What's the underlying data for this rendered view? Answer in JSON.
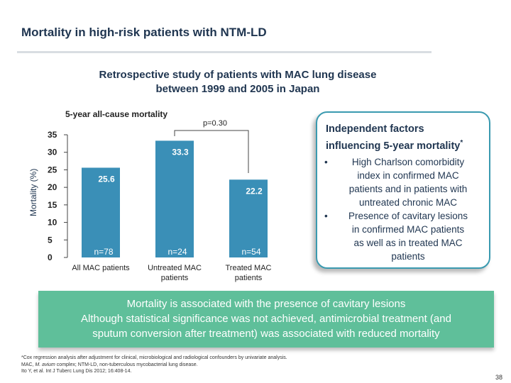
{
  "slide": {
    "title": "Mortality in high-risk patients with NTM-LD",
    "subtitle_line1": "Retrospective study of patients with MAC lung disease",
    "subtitle_line2": "between 1999 and 2005 in Japan",
    "page_number": "38"
  },
  "chart_data": {
    "type": "bar",
    "title": "5-year all-cause mortality",
    "ylabel": "Mortality (%)",
    "ylim": [
      0,
      35
    ],
    "yticks": [
      0,
      5,
      10,
      15,
      20,
      25,
      30,
      35
    ],
    "grid": false,
    "bar_color": "#3a8fb7",
    "categories": [
      "All MAC patients",
      "Untreated MAC patients",
      "Treated MAC patients"
    ],
    "category_lines": [
      [
        "All MAC patients"
      ],
      [
        "Untreated MAC",
        "patients"
      ],
      [
        "Treated MAC",
        "patients"
      ]
    ],
    "values": [
      25.6,
      33.3,
      22.2
    ],
    "value_labels": [
      "25.6",
      "33.3",
      "22.2"
    ],
    "n_labels": [
      "n=78",
      "n=24",
      "n=54"
    ],
    "annotation": "p=0.30"
  },
  "infobox": {
    "heading_line1": "Independent factors",
    "heading_line2": "influencing 5-year mortality",
    "heading_mark": "*",
    "bullet_icon": "•",
    "items": [
      [
        "High Charlson comorbidity",
        "index in confirmed MAC",
        "patients and in patients with",
        "untreated chronic MAC"
      ],
      [
        "Presence of cavitary lesions",
        "in confirmed MAC patients",
        "as well as in treated MAC",
        "patients"
      ]
    ]
  },
  "banner": {
    "line1": "Mortality is associated with the presence of cavitary lesions",
    "line2": "Although statistical significance was not achieved, antimicrobial treatment (and",
    "line3": "sputum conversion after treatment) was associated with reduced mortality",
    "color": "#5fbf9a"
  },
  "footnotes": {
    "line1": "*Cox regression analysis after adjustment for clinical, microbiological and radiological confounders by univariate analysis.",
    "line2_a": "MAC, ",
    "line2_b": "M. avium",
    "line2_c": " complex; NTM-LD, non-tuberculous mycobacterial lung disease.",
    "line3": "Ito Y, et al. Int J Tuberc Lung Dis 2012; 16:408-14."
  }
}
